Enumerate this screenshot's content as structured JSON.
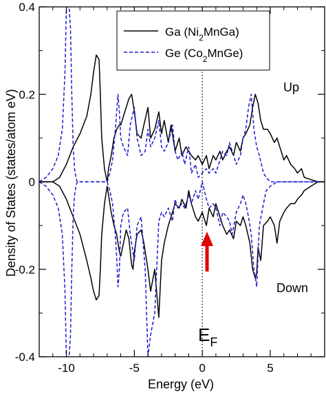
{
  "chart_data": {
    "type": "line",
    "title": "",
    "xlabel": "Energy (eV)",
    "ylabel": "Density of States (states/atom eV)",
    "xlim": [
      -12,
      9
    ],
    "ylim": [
      -0.4,
      0.4
    ],
    "xticks": [
      -10,
      -5,
      0,
      5
    ],
    "yticks": [
      -0.4,
      -0.2,
      0,
      0.2,
      0.4
    ],
    "xtick_labels": [
      "-10",
      "-5",
      "0",
      "5"
    ],
    "ytick_labels": [
      "-0.4",
      "-0.2",
      "0",
      "0.2",
      "0.4"
    ],
    "grid": false,
    "legend_position": "top-right",
    "fermi_level": 0,
    "annotations": {
      "up": "Up",
      "down": "Down",
      "fermi_base": "E",
      "fermi_sub": "F"
    },
    "series": [
      {
        "name_parts": [
          "Ga (Ni",
          "2",
          "MnGa)"
        ],
        "color": "#000000",
        "style": "solid",
        "up": {
          "x": [
            -12,
            -11,
            -10.5,
            -10,
            -9.5,
            -9,
            -8.5,
            -8.2,
            -8,
            -7.8,
            -7.6,
            -7.5,
            -7.4,
            -7.2,
            -7,
            -6.9,
            -6.7,
            -6.5,
            -6.3,
            -6.1,
            -6,
            -5.8,
            -5.6,
            -5.4,
            -5.2,
            -5.1,
            -5,
            -4.8,
            -4.5,
            -4.3,
            -4,
            -3.8,
            -3.5,
            -3.2,
            -3,
            -2.8,
            -2.5,
            -2.3,
            -2,
            -1.7,
            -1.5,
            -1.2,
            -1,
            -0.8,
            -0.5,
            -0.3,
            0,
            0.3,
            0.5,
            0.8,
            1,
            1.3,
            1.5,
            1.8,
            2,
            2.3,
            2.5,
            2.8,
            3,
            3.2,
            3.5,
            3.7,
            3.9,
            4,
            4.1,
            4.3,
            4.5,
            4.8,
            5,
            5.3,
            5.5,
            5.7,
            6,
            6.2,
            6.5,
            6.8,
            7,
            7.3,
            7.5,
            8,
            8.5,
            9
          ],
          "y": [
            0.0,
            0.0,
            0.01,
            0.04,
            0.08,
            0.11,
            0.15,
            0.2,
            0.25,
            0.29,
            0.28,
            0.2,
            0.1,
            0.03,
            0.0,
            0.03,
            0.06,
            0.1,
            0.12,
            0.13,
            0.13,
            0.15,
            0.17,
            0.19,
            0.2,
            0.18,
            0.16,
            0.11,
            0.1,
            0.13,
            0.17,
            0.1,
            0.12,
            0.16,
            0.11,
            0.14,
            0.09,
            0.13,
            0.07,
            0.1,
            0.06,
            0.08,
            0.07,
            0.06,
            0.05,
            0.06,
            0.04,
            0.06,
            0.03,
            0.06,
            0.05,
            0.07,
            0.05,
            0.07,
            0.08,
            0.06,
            0.09,
            0.07,
            0.1,
            0.11,
            0.13,
            0.17,
            0.2,
            0.19,
            0.18,
            0.14,
            0.12,
            0.12,
            0.11,
            0.09,
            0.1,
            0.08,
            0.05,
            0.06,
            0.04,
            0.03,
            0.02,
            0.03,
            0.01,
            0.005,
            0.0,
            0.0
          ]
        },
        "down": {
          "x": [
            -12,
            -11,
            -10.5,
            -10,
            -9.5,
            -9,
            -8.5,
            -8.2,
            -8,
            -7.8,
            -7.6,
            -7.5,
            -7.4,
            -7.2,
            -7,
            -6.9,
            -6.7,
            -6.5,
            -6.3,
            -6.1,
            -6,
            -5.8,
            -5.6,
            -5.4,
            -5.2,
            -5.1,
            -5,
            -4.8,
            -4.5,
            -4.3,
            -4,
            -3.8,
            -3.5,
            -3.2,
            -3,
            -2.8,
            -2.5,
            -2.3,
            -2,
            -1.7,
            -1.5,
            -1.2,
            -1,
            -0.8,
            -0.5,
            -0.3,
            0,
            0.3,
            0.5,
            0.8,
            1,
            1.3,
            1.5,
            1.8,
            2,
            2.3,
            2.5,
            2.8,
            3,
            3.2,
            3.5,
            3.7,
            3.9,
            4,
            4.1,
            4.3,
            4.5,
            4.8,
            5,
            5.3,
            5.5,
            5.7,
            6,
            6.2,
            6.5,
            6.8,
            7,
            7.3,
            7.5,
            8,
            8.5,
            9
          ],
          "y": [
            0.0,
            0.0,
            -0.01,
            -0.04,
            -0.08,
            -0.12,
            -0.18,
            -0.22,
            -0.25,
            -0.27,
            -0.26,
            -0.2,
            -0.12,
            -0.05,
            -0.01,
            -0.03,
            -0.07,
            -0.1,
            -0.12,
            -0.16,
            -0.17,
            -0.14,
            -0.11,
            -0.13,
            -0.19,
            -0.2,
            -0.16,
            -0.12,
            -0.11,
            -0.14,
            -0.2,
            -0.25,
            -0.2,
            -0.31,
            -0.18,
            -0.14,
            -0.1,
            -0.08,
            -0.05,
            -0.06,
            -0.04,
            -0.06,
            -0.02,
            -0.05,
            -0.08,
            -0.09,
            -0.07,
            -0.1,
            -0.06,
            -0.08,
            -0.05,
            -0.08,
            -0.1,
            -0.12,
            -0.11,
            -0.13,
            -0.09,
            -0.1,
            -0.08,
            -0.1,
            -0.14,
            -0.2,
            -0.22,
            -0.21,
            -0.15,
            -0.18,
            -0.1,
            -0.09,
            -0.08,
            -0.1,
            -0.14,
            -0.09,
            -0.07,
            -0.06,
            -0.05,
            -0.05,
            -0.04,
            -0.03,
            -0.02,
            -0.01,
            0.0,
            0.0
          ]
        }
      },
      {
        "name_parts": [
          "Ge (Co",
          "2",
          "MnGe)"
        ],
        "color": "#1a1acc",
        "style": "dashed",
        "up": {
          "x": [
            -12,
            -11.5,
            -11,
            -10.6,
            -10.3,
            -10.1,
            -10,
            -9.9,
            -9.8,
            -9.7,
            -9.6,
            -9.5,
            -9.4,
            -9.3,
            -9.2,
            -9,
            -8.5,
            -8,
            -7.5,
            -7,
            -6.8,
            -6.6,
            -6.4,
            -6.3,
            -6.2,
            -6.1,
            -6,
            -5.8,
            -5.5,
            -5.3,
            -5,
            -4.8,
            -4.5,
            -4.2,
            -4,
            -3.8,
            -3.5,
            -3.2,
            -3,
            -2.8,
            -2.5,
            -2.2,
            -2,
            -1.8,
            -1.5,
            -1.3,
            -1,
            -0.8,
            -0.5,
            -0.3,
            0,
            0.3,
            0.5,
            0.8,
            1,
            1.3,
            1.5,
            1.8,
            2,
            2.2,
            2.5,
            2.8,
            3,
            3.2,
            3.4,
            3.6,
            3.8,
            4,
            4.2,
            4.5,
            4.7,
            5,
            5.5,
            6,
            7,
            8,
            9
          ],
          "y": [
            0.0,
            0.01,
            0.03,
            0.06,
            0.12,
            0.25,
            0.4,
            0.4,
            0.4,
            0.35,
            0.2,
            0.08,
            0.03,
            0.01,
            0.0,
            0.0,
            0.0,
            0.0,
            0.0,
            0.0,
            0.02,
            0.05,
            0.12,
            0.16,
            0.2,
            0.16,
            0.1,
            0.08,
            0.06,
            0.13,
            0.17,
            0.1,
            0.06,
            0.07,
            0.12,
            0.08,
            0.1,
            0.14,
            0.08,
            0.07,
            0.09,
            0.13,
            0.07,
            0.05,
            0.07,
            0.04,
            0.08,
            0.02,
            0.04,
            0.01,
            0.02,
            0.03,
            0.02,
            0.03,
            0.02,
            0.05,
            0.07,
            0.06,
            0.09,
            0.07,
            0.04,
            0.06,
            0.1,
            0.12,
            0.17,
            0.2,
            0.12,
            0.08,
            0.06,
            0.02,
            0.01,
            0.0,
            0.0,
            0.0,
            0.0,
            0.0,
            0.0
          ]
        },
        "down": {
          "x": [
            -12,
            -11.5,
            -11,
            -10.6,
            -10.3,
            -10.1,
            -10,
            -9.9,
            -9.8,
            -9.7,
            -9.6,
            -9.5,
            -9.4,
            -9.3,
            -9.2,
            -9,
            -8.5,
            -8,
            -7.5,
            -7,
            -6.8,
            -6.6,
            -6.4,
            -6.3,
            -6.2,
            -6.1,
            -6,
            -5.8,
            -5.5,
            -5.3,
            -5,
            -4.8,
            -4.5,
            -4.2,
            -4,
            -3.8,
            -3.5,
            -3.2,
            -3,
            -2.8,
            -2.5,
            -2.2,
            -2,
            -1.8,
            -1.5,
            -1.3,
            -1,
            -0.8,
            -0.5,
            -0.3,
            0,
            0.3,
            0.5,
            0.8,
            1,
            1.3,
            1.5,
            1.8,
            2,
            2.2,
            2.5,
            2.8,
            3,
            3.2,
            3.4,
            3.6,
            3.8,
            4,
            4.2,
            4.5,
            4.7,
            5,
            5.5,
            6,
            7,
            8,
            9
          ],
          "y": [
            0.0,
            -0.01,
            -0.03,
            -0.06,
            -0.12,
            -0.25,
            -0.4,
            -0.4,
            -0.4,
            -0.35,
            -0.2,
            -0.08,
            -0.03,
            -0.01,
            0.0,
            0.0,
            0.0,
            0.0,
            0.0,
            0.0,
            -0.02,
            -0.05,
            -0.12,
            -0.17,
            -0.24,
            -0.2,
            -0.1,
            -0.07,
            -0.06,
            -0.12,
            -0.18,
            -0.1,
            -0.08,
            -0.2,
            -0.4,
            -0.35,
            -0.3,
            -0.09,
            -0.07,
            -0.08,
            -0.06,
            -0.09,
            -0.04,
            -0.06,
            -0.05,
            -0.06,
            -0.03,
            -0.05,
            -0.02,
            -0.04,
            0.0,
            -0.04,
            -0.06,
            -0.05,
            -0.06,
            -0.1,
            -0.07,
            -0.08,
            -0.09,
            -0.12,
            -0.07,
            -0.05,
            -0.03,
            -0.05,
            -0.08,
            -0.12,
            -0.2,
            -0.24,
            -0.1,
            -0.05,
            -0.02,
            -0.01,
            0.0,
            0.0,
            0.0,
            0.0,
            0.0
          ]
        }
      }
    ]
  }
}
